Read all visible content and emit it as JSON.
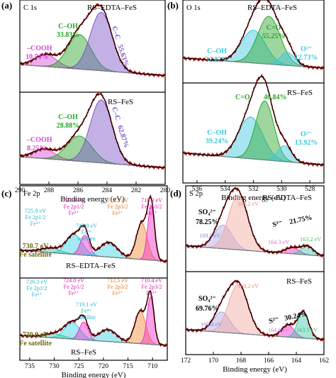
{
  "figure": {
    "colors": {
      "experimental": "#8b0000",
      "fit": "#000000",
      "background_line": "#7a7a7a",
      "cooh": "#d54bd6",
      "coh": "#2aa52a",
      "cc": "#7b52c8",
      "o_coh": "#3cc7dd",
      "c_o": "#2aa52a",
      "o2": "#3cc7dd",
      "fe_satellite_fill": "#3cc7a8",
      "fe3_orange": "#f08a32",
      "fe2_pink": "#f22ecb",
      "fe_cyan": "#34d0e3",
      "s_so4_fill": "#f1a8a0",
      "s_so4_small": "#a9a8e6",
      "s_s2_pink": "#e98ee0",
      "s_s2_green": "#4fd070"
    }
  },
  "chart_data": [
    {
      "panel": "(a)",
      "type": "line",
      "core_level": "C 1s",
      "xlabel": "Binding energy (eV)",
      "xlim": [
        290,
        280
      ],
      "xticks": [
        "290",
        "288",
        "286",
        "284",
        "282",
        "280"
      ],
      "subplots": [
        {
          "sample": "RS–EDTA–FeS",
          "peaks": [
            {
              "name": "–COOH",
              "percent": "10.54%",
              "center_ev": 288.2,
              "width_ev": 0.75,
              "height": 0.18
            },
            {
              "name": "C–OH",
              "percent": "33.83%",
              "center_ev": 285.9,
              "width_ev": 0.8,
              "height": 0.52
            },
            {
              "name": "C–C",
              "percent": "55.63%",
              "center_ev": 284.4,
              "width_ev": 0.75,
              "height": 0.88
            }
          ]
        },
        {
          "sample": "RS–FeS",
          "peaks": [
            {
              "name": "–COOH",
              "percent": "8.25%",
              "center_ev": 288.3,
              "width_ev": 0.75,
              "height": 0.14
            },
            {
              "name": "C–OH",
              "percent": "28.88%",
              "center_ev": 285.9,
              "width_ev": 0.85,
              "height": 0.38
            },
            {
              "name": "C–C",
              "percent": "62.87%",
              "center_ev": 284.4,
              "width_ev": 0.75,
              "height": 0.95
            }
          ]
        }
      ]
    },
    {
      "panel": "(b)",
      "type": "line",
      "core_level": "O 1s",
      "xlabel": "Binding energy (eV)",
      "xlim": [
        537,
        527
      ],
      "xticks": [
        "536",
        "534",
        "532",
        "530",
        "528"
      ],
      "subplots": [
        {
          "sample": "RS–EDTA–FeS",
          "peaks": [
            {
              "name": "C–OH",
              "percent": "32.02%",
              "center_ev": 532.0,
              "width_ev": 0.85,
              "height": 0.55
            },
            {
              "name": "C=O",
              "percent": "55.25%",
              "center_ev": 530.9,
              "width_ev": 0.8,
              "height": 0.8
            },
            {
              "name": "O²⁻",
              "percent": "12.73%",
              "center_ev": 529.6,
              "width_ev": 0.5,
              "height": 0.22
            }
          ]
        },
        {
          "sample": "RS–FeS",
          "peaks": [
            {
              "name": "C–OH",
              "percent": "39.24%",
              "center_ev": 532.2,
              "width_ev": 0.85,
              "height": 0.58
            },
            {
              "name": "C=O",
              "percent": "46.84%",
              "center_ev": 531.2,
              "width_ev": 0.65,
              "height": 0.82
            },
            {
              "name": "O²⁻",
              "percent": "13.92%",
              "center_ev": 529.8,
              "width_ev": 0.5,
              "height": 0.22
            }
          ]
        }
      ]
    },
    {
      "panel": "(c)",
      "type": "line",
      "core_level": "Fe 2p",
      "xlabel": "Binding energy (eV)",
      "xlim": [
        737,
        707
      ],
      "xticks": [
        "735",
        "730",
        "725",
        "720",
        "715",
        "710"
      ],
      "subplots": [
        {
          "sample": "RS–EDTA–FeS",
          "peaks": [
            {
              "energy": "725.9 eV",
              "lines": [
                "Fe 2p1/2",
                "Fe³⁺"
              ],
              "center_ev": 725.9,
              "width_ev": 1.6,
              "height": 0.3,
              "color": "cyan"
            },
            {
              "energy": "723.8 eV",
              "lines": [
                "Fe 2p1/2",
                "Fe²⁺"
              ],
              "center_ev": 723.8,
              "width_ev": 0.9,
              "height": 0.3,
              "color": "pink"
            },
            {
              "energy": "718.9 eV",
              "lines": [
                "Fe³⁺",
                "satellite"
              ],
              "center_ev": 718.9,
              "width_ev": 1.8,
              "height": 0.22,
              "color": "cyan"
            },
            {
              "energy": "712.2 eV",
              "lines": [
                "Fe 2p3/2",
                "Fe³⁺"
              ],
              "center_ev": 712.2,
              "width_ev": 1.1,
              "height": 0.55,
              "color": "orange"
            },
            {
              "energy": "710.3 eV",
              "lines": [
                "Fe 2p3/2",
                "Fe²⁺"
              ],
              "center_ev": 710.3,
              "width_ev": 0.7,
              "height": 0.82,
              "color": "pink"
            },
            {
              "energy": "730.7 eV",
              "lines": [
                "Fe satellite"
              ],
              "center_ev": 730.7,
              "width_ev": 2.0,
              "height": 0.07,
              "color": "green"
            }
          ]
        },
        {
          "sample": "RS–FeS",
          "peaks": [
            {
              "energy": "726.3 eV",
              "lines": [
                "Fe 2p1/2",
                "Fe³⁺"
              ],
              "center_ev": 726.3,
              "width_ev": 1.6,
              "height": 0.28,
              "color": "cyan"
            },
            {
              "energy": "724.0 eV",
              "lines": [
                "Fe 2p1/2",
                "Fe²⁺"
              ],
              "center_ev": 724.0,
              "width_ev": 0.9,
              "height": 0.3,
              "color": "pink"
            },
            {
              "energy": "719.1 eV",
              "lines": [
                "Fe³⁺",
                "satellite"
              ],
              "center_ev": 719.1,
              "width_ev": 1.8,
              "height": 0.2,
              "color": "cyan"
            },
            {
              "energy": "712.5 eV",
              "lines": [
                "Fe 2p3/2",
                "Fe³⁺"
              ],
              "center_ev": 712.5,
              "width_ev": 1.1,
              "height": 0.55,
              "color": "orange"
            },
            {
              "energy": "710.4 eV",
              "lines": [
                "Fe 2p3/2",
                "Fe²⁺"
              ],
              "center_ev": 710.4,
              "width_ev": 0.7,
              "height": 0.8,
              "color": "pink"
            },
            {
              "energy": "730.0 eV",
              "lines": [
                "Fe satellite"
              ],
              "center_ev": 730.0,
              "width_ev": 2.0,
              "height": 0.07,
              "color": "green"
            }
          ]
        }
      ]
    },
    {
      "panel": "(d)",
      "type": "line",
      "core_level": "S 2p",
      "xlabel": "Binding energy (eV)",
      "xlim": [
        172,
        162
      ],
      "xticks": [
        "172",
        "170",
        "168",
        "166",
        "164",
        "162"
      ],
      "subplots": [
        {
          "sample": "RS–EDTA–FeS",
          "groups": [
            {
              "name": "SO₄²⁻",
              "percent": "78.25%"
            },
            {
              "name": "S²⁻",
              "percent": "21.75%"
            }
          ],
          "peaks": [
            {
              "energy": "169.3 eV",
              "center_ev": 169.3,
              "width_ev": 0.65,
              "height": 0.38,
              "color": "lavender"
            },
            {
              "energy": "168.2 eV",
              "center_ev": 168.2,
              "width_ev": 0.7,
              "height": 0.88,
              "color": "salmon"
            },
            {
              "energy": "164.3 eV",
              "center_ev": 164.3,
              "width_ev": 0.5,
              "height": 0.1,
              "color": "pink"
            },
            {
              "energy": "163.2 eV",
              "center_ev": 163.2,
              "width_ev": 0.45,
              "height": 0.14,
              "color": "green"
            }
          ]
        },
        {
          "sample": "RS–FeS",
          "groups": [
            {
              "name": "SO₄²⁻",
              "percent": "69.76%"
            },
            {
              "name": "S²⁻",
              "percent": "30.24%"
            }
          ],
          "peaks": [
            {
              "energy": "169.4 eV",
              "center_ev": 169.4,
              "width_ev": 0.6,
              "height": 0.34,
              "color": "lavender"
            },
            {
              "energy": "168.2 eV",
              "center_ev": 168.2,
              "width_ev": 0.7,
              "height": 0.82,
              "color": "salmon"
            },
            {
              "energy": "164.6 eV",
              "center_ev": 164.6,
              "width_ev": 0.45,
              "height": 0.2,
              "color": "pink"
            },
            {
              "energy": "163.5 eV",
              "center_ev": 163.5,
              "width_ev": 0.4,
              "height": 0.44,
              "color": "green"
            }
          ]
        }
      ]
    }
  ]
}
